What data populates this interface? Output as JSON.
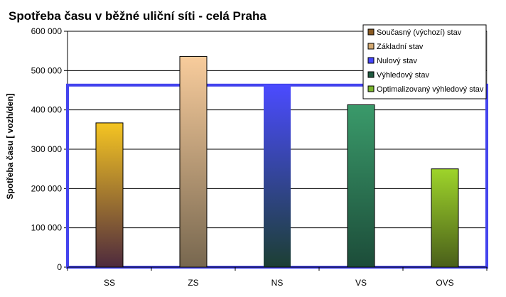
{
  "chart_data": {
    "type": "bar",
    "title": "Spotřeba času v běžné uliční síti - celá Praha",
    "ylabel": "Spotřeba času  [ vozh/den]",
    "xlabel": "",
    "categories": [
      "SS",
      "ZS",
      "NS",
      "VS",
      "OVS"
    ],
    "values": [
      367000,
      536000,
      463000,
      413000,
      250000
    ],
    "ylim": [
      0,
      600000
    ],
    "yticks": [
      0,
      100000,
      200000,
      300000,
      400000,
      500000,
      600000
    ],
    "ytick_labels": [
      "0",
      "100 000",
      "200 000",
      "300 000",
      "400 000",
      "500 000",
      "600 000"
    ],
    "grid": true,
    "legend_position": "top-right",
    "legend": [
      "Současný (výchozí) stav",
      "Základní stav",
      "Nulový stav",
      "Výhledový stav",
      "Optimalizovaný výhledový stav"
    ],
    "colors": [
      {
        "top": "#f5c522",
        "bottom": "#4e2a3d",
        "legend": "#8a5a22"
      },
      {
        "top": "#f8cc9c",
        "bottom": "#77674f",
        "legend": "#d2a870"
      },
      {
        "top": "#4b4bff",
        "bottom": "#1c3f33",
        "legend": "#4545ff"
      },
      {
        "top": "#3a9a6a",
        "bottom": "#1c4c39",
        "legend": "#1f5a40"
      },
      {
        "top": "#9ed42a",
        "bottom": "#4a5f1a",
        "legend": "#7ab52c"
      }
    ],
    "highlight_series": 2,
    "highlight_color": "#4444ee"
  }
}
